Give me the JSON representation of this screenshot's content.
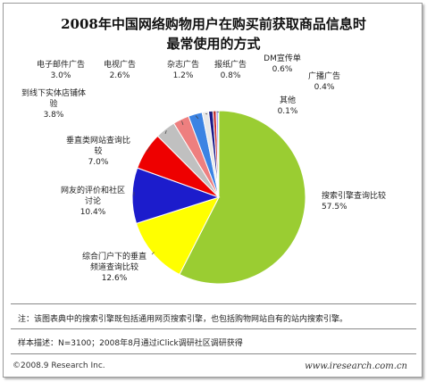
{
  "chart_data": {
    "type": "pie",
    "title": "2008年中国网络购物用户在购买前获取商品信息时",
    "subtitle": "最常使用的方式",
    "slices": [
      {
        "name": "搜索引擎查询比较",
        "value": 57.5,
        "label": "57.5%",
        "color": "#9acd32"
      },
      {
        "name": "综合门户下的垂直频道查询比较",
        "value": 12.6,
        "label": "12.6%",
        "color": "#ffff00"
      },
      {
        "name": "网友的评价和社区讨论",
        "value": 10.4,
        "label": "10.4%",
        "color": "#1c1ccc"
      },
      {
        "name": "垂直类网站查询比较",
        "value": 7.0,
        "label": "7.0%",
        "color": "#ee0000"
      },
      {
        "name": "到线下实体店铺体验",
        "value": 3.8,
        "label": "3.8%",
        "color": "#c0c0c0"
      },
      {
        "name": "电子邮件广告",
        "value": 3.0,
        "label": "3.0%",
        "color": "#ee7f7f"
      },
      {
        "name": "电视广告",
        "value": 2.6,
        "label": "2.6%",
        "color": "#3b83e3"
      },
      {
        "name": "杂志广告",
        "value": 1.2,
        "label": "1.2%",
        "color": "#e8e8e8"
      },
      {
        "name": "报纸广告",
        "value": 0.8,
        "label": "0.8%",
        "color": "#1a1a8a"
      },
      {
        "name": "DM宣传单",
        "value": 0.6,
        "label": "0.6%",
        "color": "#cc3333"
      },
      {
        "name": "广播广告",
        "value": 0.4,
        "label": "0.4%",
        "color": "#a0a0ff"
      },
      {
        "name": "其他",
        "value": 0.1,
        "label": "0.1%",
        "color": "#222222"
      }
    ]
  },
  "notes": {
    "note1": "注：该图表典中的搜索引擎既包括通用网页搜索引擎，也包括购物网站自有的站内搜索引擎。",
    "note2": "样本描述：N=3100；2008年8月通过iClick调研社区调研获得"
  },
  "footer": {
    "left": "©2008.9 Research Inc.",
    "right": "www.iresearch.com.cn"
  }
}
